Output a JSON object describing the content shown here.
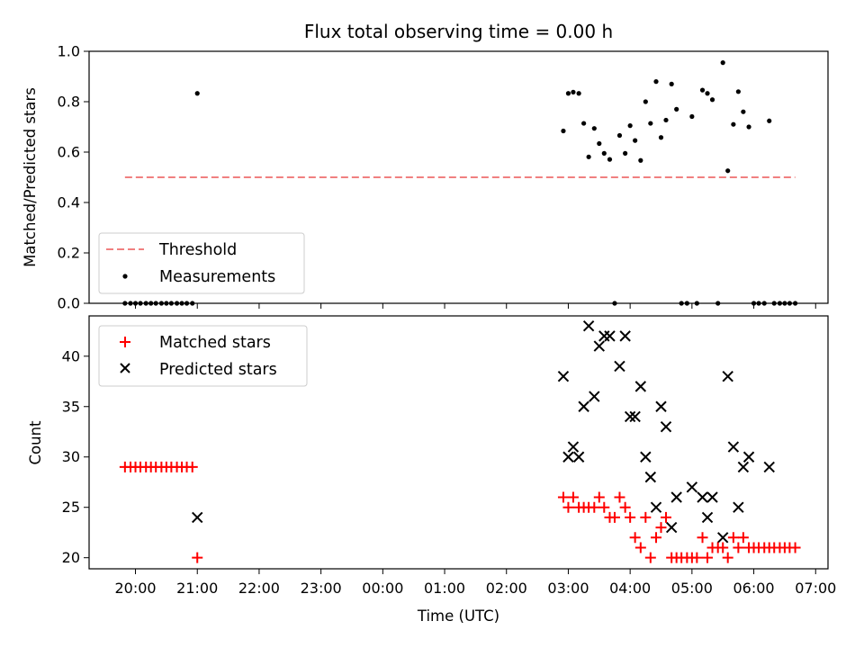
{
  "chart_data": [
    {
      "type": "scatter",
      "title": "Flux total observing time = 0.00 h",
      "xlabel": "",
      "ylabel": "Matched/Predicted stars",
      "x_unit": "hours",
      "ylim": [
        0.0,
        1.0
      ],
      "yticks": [
        0.0,
        0.2,
        0.4,
        0.6,
        0.8,
        1.0
      ],
      "legend": {
        "position": "lower-left",
        "entries": [
          "Threshold",
          "Measurements"
        ]
      },
      "series": [
        {
          "name": "Threshold",
          "style": "dashed-line",
          "color": "#f08080",
          "points": [
            [
              19.83,
              0.5
            ],
            [
              30.67,
              0.5
            ]
          ]
        },
        {
          "name": "Measurements",
          "style": "dot",
          "color": "#000000",
          "points": [
            [
              19.83,
              0
            ],
            [
              19.92,
              0
            ],
            [
              20.0,
              0
            ],
            [
              20.08,
              0
            ],
            [
              20.17,
              0
            ],
            [
              20.25,
              0
            ],
            [
              20.33,
              0
            ],
            [
              20.42,
              0
            ],
            [
              20.5,
              0
            ],
            [
              20.58,
              0
            ],
            [
              20.67,
              0
            ],
            [
              20.75,
              0
            ],
            [
              20.83,
              0
            ],
            [
              20.92,
              0
            ],
            [
              21.0,
              0.833
            ],
            [
              26.92,
              0.684
            ],
            [
              27.0,
              0.833
            ],
            [
              27.08,
              0.838
            ],
            [
              27.17,
              0.833
            ],
            [
              27.25,
              0.714
            ],
            [
              27.33,
              0.581
            ],
            [
              27.42,
              0.694
            ],
            [
              27.5,
              0.634
            ],
            [
              27.58,
              0.595
            ],
            [
              27.67,
              0.571
            ],
            [
              27.75,
              0.0
            ],
            [
              27.83,
              0.666
            ],
            [
              27.92,
              0.595
            ],
            [
              28.0,
              0.705
            ],
            [
              28.08,
              0.646
            ],
            [
              28.17,
              0.567
            ],
            [
              28.25,
              0.8
            ],
            [
              28.33,
              0.714
            ],
            [
              28.42,
              0.88
            ],
            [
              28.5,
              0.658
            ],
            [
              28.58,
              0.727
            ],
            [
              28.67,
              0.87
            ],
            [
              28.75,
              0.77
            ],
            [
              28.83,
              0.0
            ],
            [
              28.92,
              0.0
            ],
            [
              29.0,
              0.741
            ],
            [
              29.08,
              0.0
            ],
            [
              29.17,
              0.846
            ],
            [
              29.25,
              0.833
            ],
            [
              29.33,
              0.808
            ],
            [
              29.42,
              0.0
            ],
            [
              29.5,
              0.955
            ],
            [
              29.58,
              0.526
            ],
            [
              29.67,
              0.71
            ],
            [
              29.75,
              0.84
            ],
            [
              29.83,
              0.76
            ],
            [
              29.92,
              0.7
            ],
            [
              30.0,
              0.0
            ],
            [
              30.08,
              0.0
            ],
            [
              30.17,
              0.0
            ],
            [
              30.25,
              0.724
            ],
            [
              30.33,
              0.0
            ],
            [
              30.42,
              0.0
            ],
            [
              30.5,
              0.0
            ],
            [
              30.58,
              0.0
            ],
            [
              30.67,
              0.0
            ]
          ]
        }
      ]
    },
    {
      "type": "scatter",
      "title": "",
      "xlabel": "Time (UTC)",
      "ylabel": "Count",
      "x_unit": "hours",
      "xlim": [
        19.25,
        31.2
      ],
      "xticks": [
        20,
        21,
        22,
        23,
        24,
        25,
        26,
        27,
        28,
        29,
        30,
        31
      ],
      "xtick_labels": [
        "20:00",
        "21:00",
        "22:00",
        "23:00",
        "00:00",
        "01:00",
        "02:00",
        "03:00",
        "04:00",
        "05:00",
        "06:00",
        "07:00"
      ],
      "ylim": [
        18.9,
        44.0
      ],
      "yticks": [
        20,
        25,
        30,
        35,
        40
      ],
      "legend": {
        "position": "upper-left",
        "entries": [
          "Matched stars",
          "Predicted stars"
        ]
      },
      "series": [
        {
          "name": "Matched stars",
          "marker": "plus",
          "color": "#ff0000",
          "points": [
            [
              19.83,
              29
            ],
            [
              19.92,
              29
            ],
            [
              20.0,
              29
            ],
            [
              20.08,
              29
            ],
            [
              20.17,
              29
            ],
            [
              20.25,
              29
            ],
            [
              20.33,
              29
            ],
            [
              20.42,
              29
            ],
            [
              20.5,
              29
            ],
            [
              20.58,
              29
            ],
            [
              20.67,
              29
            ],
            [
              20.75,
              29
            ],
            [
              20.83,
              29
            ],
            [
              20.92,
              29
            ],
            [
              21.0,
              20
            ],
            [
              26.92,
              26
            ],
            [
              27.0,
              25
            ],
            [
              27.08,
              26
            ],
            [
              27.17,
              25
            ],
            [
              27.25,
              25
            ],
            [
              27.33,
              25
            ],
            [
              27.42,
              25
            ],
            [
              27.5,
              26
            ],
            [
              27.58,
              25
            ],
            [
              27.67,
              24
            ],
            [
              27.75,
              24
            ],
            [
              27.83,
              26
            ],
            [
              27.92,
              25
            ],
            [
              28.0,
              24
            ],
            [
              28.08,
              22
            ],
            [
              28.17,
              21
            ],
            [
              28.25,
              24
            ],
            [
              28.33,
              20
            ],
            [
              28.42,
              22
            ],
            [
              28.5,
              23
            ],
            [
              28.58,
              24
            ],
            [
              28.67,
              20
            ],
            [
              28.75,
              20
            ],
            [
              28.83,
              20
            ],
            [
              28.92,
              20
            ],
            [
              29.0,
              20
            ],
            [
              29.08,
              20
            ],
            [
              29.17,
              22
            ],
            [
              29.25,
              20
            ],
            [
              29.33,
              21
            ],
            [
              29.42,
              21
            ],
            [
              29.5,
              21
            ],
            [
              29.58,
              20
            ],
            [
              29.67,
              22
            ],
            [
              29.75,
              21
            ],
            [
              29.83,
              22
            ],
            [
              29.92,
              21
            ],
            [
              30.0,
              21
            ],
            [
              30.08,
              21
            ],
            [
              30.17,
              21
            ],
            [
              30.25,
              21
            ],
            [
              30.33,
              21
            ],
            [
              30.42,
              21
            ],
            [
              30.5,
              21
            ],
            [
              30.58,
              21
            ],
            [
              30.67,
              21
            ]
          ]
        },
        {
          "name": "Predicted stars",
          "marker": "x",
          "color": "#000000",
          "points": [
            [
              21.0,
              24
            ],
            [
              26.92,
              38
            ],
            [
              27.0,
              30
            ],
            [
              27.08,
              31
            ],
            [
              27.17,
              30
            ],
            [
              27.25,
              35
            ],
            [
              27.33,
              43
            ],
            [
              27.42,
              36
            ],
            [
              27.5,
              41
            ],
            [
              27.58,
              42
            ],
            [
              27.67,
              42
            ],
            [
              27.83,
              39
            ],
            [
              27.92,
              42
            ],
            [
              28.0,
              34
            ],
            [
              28.08,
              34
            ],
            [
              28.17,
              37
            ],
            [
              28.25,
              30
            ],
            [
              28.33,
              28
            ],
            [
              28.42,
              25
            ],
            [
              28.5,
              35
            ],
            [
              28.58,
              33
            ],
            [
              28.67,
              23
            ],
            [
              28.75,
              26
            ],
            [
              29.0,
              27
            ],
            [
              29.17,
              26
            ],
            [
              29.25,
              24
            ],
            [
              29.33,
              26
            ],
            [
              29.5,
              22
            ],
            [
              29.58,
              38
            ],
            [
              29.67,
              31
            ],
            [
              29.75,
              25
            ],
            [
              29.83,
              29
            ],
            [
              29.92,
              30
            ],
            [
              30.25,
              29
            ]
          ]
        }
      ]
    }
  ]
}
